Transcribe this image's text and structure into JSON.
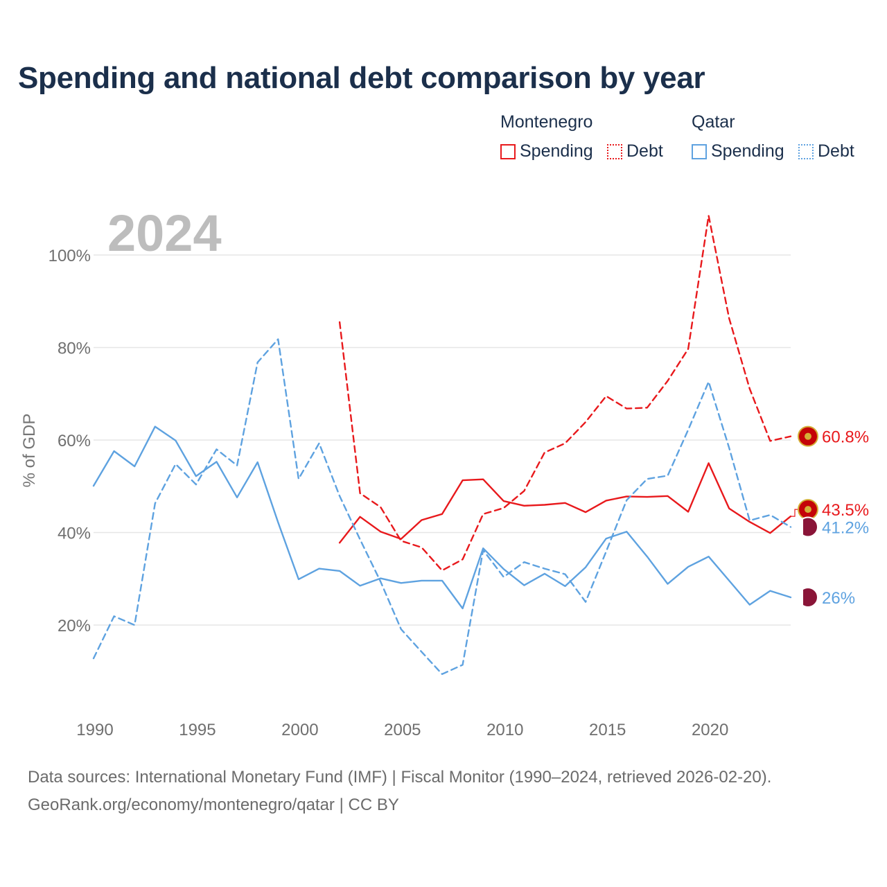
{
  "title": "Spending and national debt comparison by year",
  "legend": {
    "groups": [
      {
        "country": "Montenegro",
        "items": [
          {
            "label": "Spending",
            "style": "solid"
          },
          {
            "label": "Debt",
            "style": "dotted"
          }
        ],
        "color": "#e8191c"
      },
      {
        "country": "Qatar",
        "items": [
          {
            "label": "Spending",
            "style": "solid"
          },
          {
            "label": "Debt",
            "style": "dotted"
          }
        ],
        "color": "#5ea2e0"
      }
    ]
  },
  "year_label": "2024",
  "footer": {
    "line1": "Data sources: International Monetary Fund (IMF) | Fiscal Monitor (1990–2024, retrieved 2026-02-20).",
    "line2": "GeoRank.org/economy/montenegro/qatar | CC BY"
  },
  "chart_data": {
    "type": "line",
    "title": "Spending and national debt comparison by year",
    "xlabel": "",
    "ylabel": "% of GDP",
    "xlim": [
      1990,
      2024
    ],
    "ylim": [
      5,
      110
    ],
    "x_ticks": [
      1990,
      1995,
      2000,
      2005,
      2010,
      2015,
      2020
    ],
    "y_ticks": [
      20,
      40,
      60,
      80,
      100
    ],
    "y_tick_labels": [
      "20%",
      "40%",
      "60%",
      "80%",
      "100%"
    ],
    "grid": true,
    "series": [
      {
        "name": "Montenegro Spending",
        "color": "#e8191c",
        "dash": "solid",
        "end_label": "43.5%",
        "x": [
          2002,
          2003,
          2004,
          2005,
          2006,
          2007,
          2008,
          2009,
          2010,
          2011,
          2012,
          2013,
          2014,
          2015,
          2016,
          2017,
          2018,
          2019,
          2020,
          2021,
          2022,
          2023,
          2024
        ],
        "values": [
          37.8,
          43.4,
          40.2,
          38.6,
          42.7,
          44.0,
          51.3,
          51.5,
          46.8,
          45.8,
          46.0,
          46.4,
          44.4,
          46.9,
          47.8,
          47.7,
          47.9,
          44.5,
          55.0,
          45.2,
          42.3,
          39.9,
          43.5
        ]
      },
      {
        "name": "Montenegro Debt",
        "color": "#e8191c",
        "dash": "dashed",
        "end_label": "60.8%",
        "x": [
          2002,
          2003,
          2004,
          2005,
          2006,
          2007,
          2008,
          2009,
          2010,
          2011,
          2012,
          2013,
          2014,
          2015,
          2016,
          2017,
          2018,
          2019,
          2020,
          2021,
          2022,
          2023,
          2024
        ],
        "values": [
          85.5,
          48.5,
          45.5,
          38.2,
          36.8,
          31.8,
          34.2,
          44.0,
          45.3,
          49.0,
          57.3,
          59.3,
          63.9,
          69.5,
          66.8,
          67.0,
          72.8,
          79.7,
          108.5,
          86.3,
          71.1,
          59.8,
          60.8
        ]
      },
      {
        "name": "Qatar Spending",
        "color": "#5ea2e0",
        "dash": "solid",
        "end_label": "26%",
        "x": [
          1990,
          1991,
          1992,
          1993,
          1994,
          1995,
          1996,
          1997,
          1998,
          1999,
          2000,
          2001,
          2002,
          2003,
          2004,
          2005,
          2006,
          2007,
          2008,
          2009,
          2010,
          2011,
          2012,
          2013,
          2014,
          2015,
          2016,
          2017,
          2018,
          2019,
          2020,
          2021,
          2022,
          2023,
          2024
        ],
        "values": [
          50.1,
          57.6,
          54.3,
          62.9,
          59.9,
          52.2,
          55.3,
          47.6,
          55.2,
          42.2,
          29.9,
          32.2,
          31.7,
          28.5,
          30.1,
          29.1,
          29.6,
          29.6,
          23.6,
          36.6,
          32.1,
          28.6,
          31.1,
          28.4,
          32.5,
          38.7,
          40.2,
          34.8,
          28.9,
          32.6,
          34.8,
          29.6,
          24.4,
          27.4,
          26.0
        ]
      },
      {
        "name": "Qatar Debt",
        "color": "#5ea2e0",
        "dash": "dashed",
        "end_label": "41.2%",
        "x": [
          1990,
          1991,
          1992,
          1993,
          1994,
          1995,
          1996,
          1997,
          1998,
          1999,
          2000,
          2001,
          2002,
          2003,
          2004,
          2005,
          2006,
          2007,
          2008,
          2009,
          2010,
          2011,
          2012,
          2013,
          2014,
          2015,
          2016,
          2017,
          2018,
          2019,
          2020,
          2021,
          2022,
          2023,
          2024
        ],
        "values": [
          12.8,
          21.9,
          20.0,
          46.3,
          54.8,
          50.4,
          58.0,
          54.5,
          76.8,
          81.8,
          51.6,
          59.3,
          47.9,
          38.5,
          29.4,
          19.1,
          14.2,
          9.4,
          11.4,
          36.2,
          30.4,
          33.6,
          32.2,
          31.0,
          25.0,
          35.9,
          47.0,
          51.6,
          52.3,
          62.2,
          72.6,
          58.3,
          42.6,
          43.8,
          41.2
        ]
      }
    ]
  }
}
